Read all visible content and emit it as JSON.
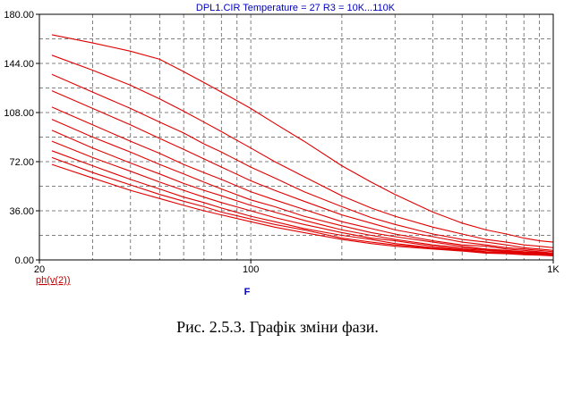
{
  "chart_data": {
    "type": "line",
    "title": "DPL1.CIR Temperature = 27 R3 = 10K...110K",
    "xlabel": "F",
    "ylabel": "",
    "legend": [
      "ph(v(2))"
    ],
    "x_scale": "log",
    "xlim": [
      20,
      1000
    ],
    "ylim": [
      0,
      180
    ],
    "x_ticks": [
      20,
      100,
      1000
    ],
    "x_tick_labels": [
      "20",
      "100",
      "1K"
    ],
    "y_ticks": [
      0,
      36,
      72,
      108,
      144,
      180
    ],
    "y_tick_labels": [
      "0.00",
      "36.00",
      "72.00",
      "108.00",
      "144.00",
      "180.00"
    ],
    "grid": true,
    "colors": {
      "series": "#e00000",
      "axis": "#000000",
      "header": "#0000c0",
      "legend": "#c00000",
      "grid": "#808080"
    },
    "x": [
      22,
      30,
      40,
      50,
      60,
      70,
      80,
      100,
      120,
      150,
      200,
      250,
      300,
      400,
      500,
      600,
      700,
      800,
      900,
      1000
    ],
    "series": [
      {
        "values": [
          165,
          159,
          153,
          147,
          138,
          130,
          123,
          111,
          100,
          87,
          69,
          57,
          48,
          35,
          27,
          22,
          19,
          16,
          14,
          13
        ]
      },
      {
        "values": [
          150,
          139,
          128,
          118,
          109,
          101,
          94,
          82,
          72,
          61,
          47,
          38,
          32,
          24,
          19,
          15,
          13,
          11,
          10,
          9
        ]
      },
      {
        "values": [
          136,
          123,
          111,
          101,
          93,
          85,
          79,
          68,
          60,
          50,
          39,
          31,
          26,
          19,
          15,
          13,
          11,
          9,
          8,
          7
        ]
      },
      {
        "values": [
          124,
          111,
          99,
          89,
          81,
          74,
          68,
          58,
          51,
          43,
          33,
          27,
          22,
          17,
          13,
          11,
          9,
          8,
          7,
          6
        ]
      },
      {
        "values": [
          112,
          99,
          87,
          78,
          70,
          64,
          59,
          50,
          44,
          37,
          28,
          23,
          19,
          14,
          11,
          10,
          8,
          7,
          6,
          5
        ]
      },
      {
        "values": [
          103,
          90,
          79,
          70,
          63,
          57,
          52,
          44,
          39,
          32,
          25,
          20,
          17,
          13,
          10,
          8,
          7,
          6,
          5.5,
          5
        ]
      },
      {
        "values": [
          95,
          82,
          71,
          63,
          56,
          51,
          47,
          40,
          35,
          29,
          22,
          18,
          15,
          11,
          9,
          7.5,
          6.5,
          5.5,
          5,
          4.5
        ]
      },
      {
        "values": [
          87,
          75,
          65,
          57,
          51,
          46,
          42,
          36,
          31,
          26,
          20,
          16,
          14,
          10,
          8,
          7,
          6,
          5,
          4.5,
          4
        ]
      },
      {
        "values": [
          80,
          69,
          59,
          52,
          46,
          42,
          38,
          32,
          28,
          23,
          18,
          15,
          12,
          9,
          7.5,
          6,
          5.5,
          4.5,
          4,
          3.5
        ]
      },
      {
        "values": [
          75,
          64,
          55,
          48,
          43,
          39,
          35,
          30,
          26,
          22,
          16,
          13,
          11,
          8.5,
          7,
          5.5,
          5,
          4,
          3.7,
          3.3
        ]
      },
      {
        "values": [
          70,
          60,
          51,
          45,
          40,
          36,
          33,
          28,
          24,
          20,
          15,
          12,
          10,
          8,
          6.5,
          5,
          4.5,
          3.8,
          3.5,
          3
        ]
      }
    ]
  },
  "caption": "Рис. 2.5.3. Графік зміни фази."
}
